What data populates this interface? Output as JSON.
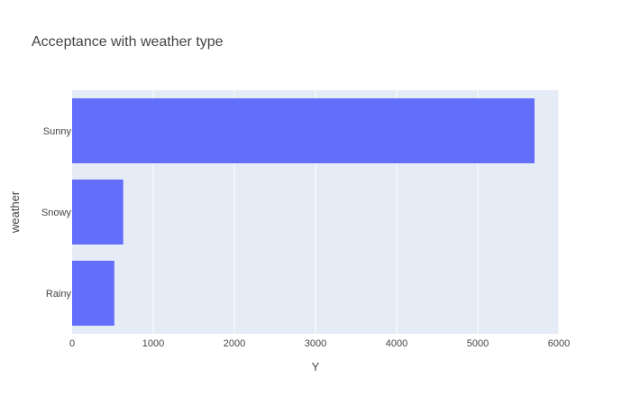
{
  "chart_data": {
    "type": "bar",
    "orientation": "horizontal",
    "title": "Acceptance with weather type",
    "xlabel": "Y",
    "ylabel": "weather",
    "categories": [
      "Sunny",
      "Snowy",
      "Rainy"
    ],
    "values": [
      5700,
      630,
      520
    ],
    "xlim": [
      0,
      6000
    ],
    "xticks": [
      0,
      1000,
      2000,
      3000,
      4000,
      5000,
      6000
    ],
    "grid": true,
    "colors": {
      "bar": "#636efa",
      "plot_background": "#e5ecf6",
      "grid": "#ffffff"
    }
  }
}
